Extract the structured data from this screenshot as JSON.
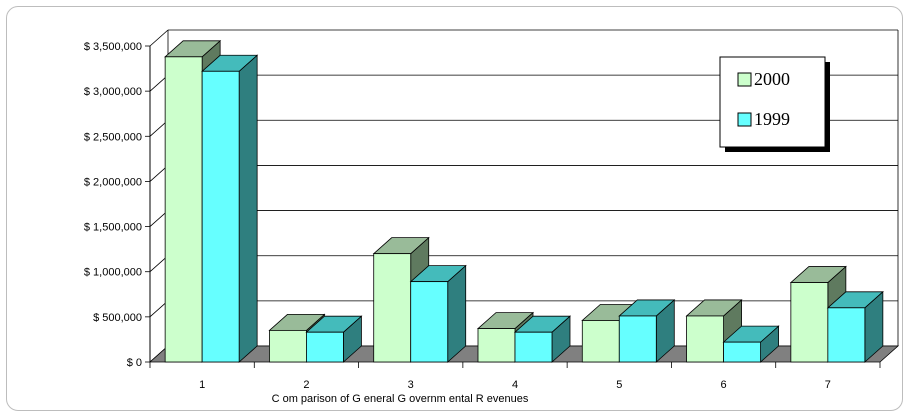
{
  "chart_data": {
    "type": "bar",
    "categories": [
      "1",
      "2",
      "3",
      "4",
      "5",
      "6",
      "7"
    ],
    "series": [
      {
        "name": "2000",
        "values": [
          3380000,
          350000,
          1200000,
          370000,
          460000,
          510000,
          880000
        ],
        "color": "#ccffcc",
        "side_color": "#5f7a5f",
        "top_color": "#99bb99"
      },
      {
        "name": "1999",
        "values": [
          3220000,
          330000,
          890000,
          330000,
          510000,
          220000,
          600000
        ],
        "color": "#66ffff",
        "side_color": "#2f7f7f",
        "top_color": "#44bbbb"
      }
    ],
    "title": "",
    "xlabel": "C om parison of G eneral G overnm ental R evenues",
    "ylabel": "",
    "ylim": [
      0,
      3500000
    ],
    "yticks": [
      {
        "value": 0,
        "label": "$ 0"
      },
      {
        "value": 500000,
        "label": "$ 500,000"
      },
      {
        "value": 1000000,
        "label": "$ 1,000,000"
      },
      {
        "value": 1500000,
        "label": "$ 1,500,000"
      },
      {
        "value": 2000000,
        "label": "$ 2,000,000"
      },
      {
        "value": 2500000,
        "label": "$ 2,500,000"
      },
      {
        "value": 3000000,
        "label": "$ 3,000,000"
      },
      {
        "value": 3500000,
        "label": "$ 3,500,000"
      }
    ],
    "grid": true,
    "legend_position": "top-right",
    "floor_color": "#808080"
  }
}
